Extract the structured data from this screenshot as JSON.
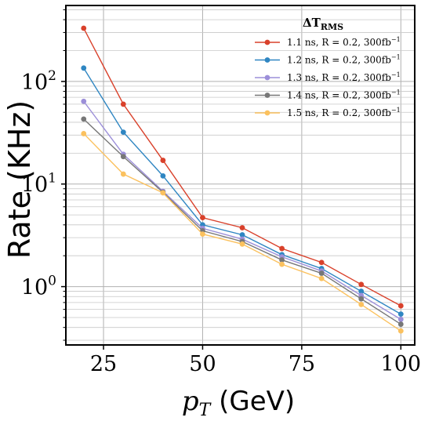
{
  "chart_data": {
    "type": "line",
    "title": "",
    "xlabel_var": "p",
    "xlabel_sub": "T",
    "xlabel_unit": " (GeV)",
    "ylabel": "Rate (KHz)",
    "yscale": "log",
    "xlim": [
      15.5,
      103.5
    ],
    "ylim": [
      0.27,
      550
    ],
    "grid": true,
    "legend_placement": "top-right",
    "legend_title": "ΔT",
    "legend_title_sub": "RMS",
    "x_ticks": [
      25,
      50,
      75,
      100
    ],
    "x_tick_labels": [
      "25",
      "50",
      "75",
      "100"
    ],
    "y_ticks": [
      1,
      10,
      100
    ],
    "y_tick_base": "10",
    "y_tick_exponents": [
      "0",
      "1",
      "2"
    ],
    "x": [
      20,
      30,
      40,
      50,
      60,
      70,
      80,
      90,
      100
    ],
    "series": [
      {
        "name": "1.1 ns, R = 0.2, 300fb",
        "name_sup": "−1",
        "color": "#d9412b",
        "values": [
          330,
          60,
          17,
          4.7,
          3.75,
          2.35,
          1.72,
          1.05,
          0.65
        ]
      },
      {
        "name": "1.2 ns, R = 0.2, 300fb",
        "name_sup": "−1",
        "color": "#2f86c2",
        "values": [
          135,
          32,
          12,
          4.0,
          3.2,
          2.05,
          1.5,
          0.9,
          0.54
        ]
      },
      {
        "name": "1.3 ns, R = 0.2, 300fb",
        "name_sup": "−1",
        "color": "#9c8fd9",
        "values": [
          64,
          19.5,
          8.5,
          3.7,
          2.9,
          1.95,
          1.42,
          0.82,
          0.48
        ]
      },
      {
        "name": "1.4 ns, R = 0.2, 300fb",
        "name_sup": "−1",
        "color": "#777777",
        "values": [
          43,
          18.5,
          8.3,
          3.5,
          2.75,
          1.82,
          1.35,
          0.76,
          0.43
        ]
      },
      {
        "name": "1.5 ns, R = 0.2, 300fb",
        "name_sup": "−1",
        "color": "#fbc15e",
        "values": [
          31,
          12.5,
          8.2,
          3.25,
          2.6,
          1.65,
          1.2,
          0.67,
          0.37
        ]
      }
    ]
  }
}
